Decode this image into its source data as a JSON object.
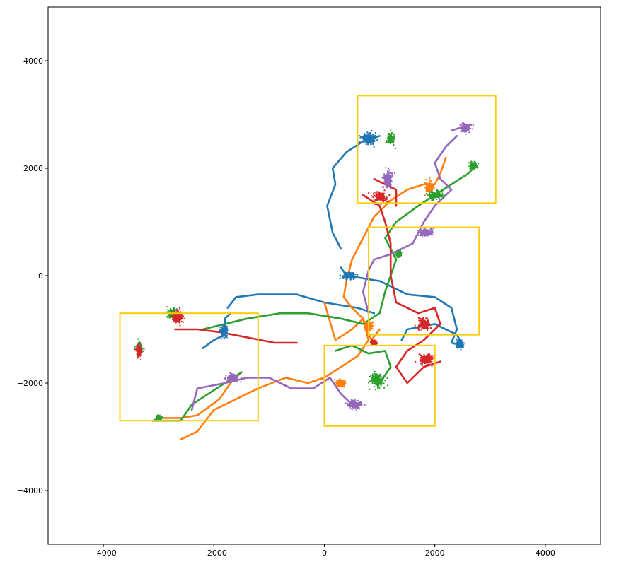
{
  "chart_data": {
    "type": "scatter",
    "title": "",
    "xlabel": "",
    "ylabel": "",
    "xlim": [
      -5000,
      5000
    ],
    "ylim": [
      -5000,
      5000
    ],
    "xticks": [
      -4000,
      -2000,
      0,
      2000,
      4000
    ],
    "yticks": [
      -4000,
      -2000,
      0,
      2000,
      4000
    ],
    "xtick_labels": [
      "−4000",
      "−2000",
      "0",
      "2000",
      "4000"
    ],
    "ytick_labels": [
      "−4000",
      "−2000",
      "0",
      "2000",
      "4000"
    ],
    "grid": false,
    "legend": "none",
    "series": [
      {
        "color": "#1f77b4",
        "paths": [
          [
            [
              300,
              500
            ],
            [
              150,
              800
            ],
            [
              50,
              1300
            ],
            [
              200,
              1700
            ],
            [
              150,
              2000
            ],
            [
              400,
              2300
            ],
            [
              700,
              2500
            ],
            [
              1000,
              2600
            ]
          ],
          [
            [
              300,
              150
            ],
            [
              400,
              0
            ],
            [
              700,
              -50
            ],
            [
              1000,
              -100
            ],
            [
              1500,
              -350
            ],
            [
              2000,
              -400
            ],
            [
              2300,
              -600
            ],
            [
              2400,
              -1000
            ],
            [
              2300,
              -1250
            ],
            [
              2500,
              -1300
            ],
            [
              2400,
              -1100
            ],
            [
              2000,
              -900
            ],
            [
              1500,
              -1000
            ],
            [
              1400,
              -1200
            ]
          ],
          [
            [
              -1750,
              -600
            ],
            [
              -1600,
              -400
            ],
            [
              -1200,
              -350
            ],
            [
              -500,
              -350
            ],
            [
              0,
              -500
            ],
            [
              600,
              -600
            ],
            [
              900,
              -700
            ]
          ],
          [
            [
              -2200,
              -1350
            ],
            [
              -2000,
              -1200
            ],
            [
              -1800,
              -1100
            ],
            [
              -1800,
              -800
            ],
            [
              -1700,
              -700
            ]
          ]
        ],
        "clusters": [
          {
            "center": [
              800,
              2550
            ],
            "spread": [
              250,
              200
            ]
          },
          {
            "center": [
              2450,
              -1280
            ],
            "spread": [
              130,
              130
            ]
          },
          {
            "center": [
              -1820,
              -1050
            ],
            "spread": [
              120,
              220
            ]
          },
          {
            "center": [
              450,
              0
            ],
            "spread": [
              220,
              130
            ]
          }
        ]
      },
      {
        "color": "#ff7f0e",
        "paths": [
          [
            [
              -2600,
              -3050
            ],
            [
              -2300,
              -2900
            ],
            [
              -2000,
              -2500
            ],
            [
              -1600,
              -2300
            ],
            [
              -1200,
              -2100
            ],
            [
              -700,
              -1900
            ],
            [
              -300,
              -2000
            ],
            [
              0,
              -1900
            ],
            [
              300,
              -1700
            ],
            [
              600,
              -1500
            ],
            [
              800,
              -1200
            ],
            [
              700,
              -800
            ],
            [
              500,
              -600
            ],
            [
              350,
              -400
            ],
            [
              400,
              -100
            ],
            [
              500,
              300
            ],
            [
              700,
              700
            ],
            [
              900,
              1100
            ],
            [
              1200,
              1400
            ],
            [
              1500,
              1600
            ],
            [
              1800,
              1700
            ],
            [
              2000,
              1700
            ],
            [
              2100,
              1900
            ],
            [
              2200,
              2200
            ]
          ],
          [
            [
              -3000,
              -2650
            ],
            [
              -2600,
              -2650
            ],
            [
              -2300,
              -2600
            ],
            [
              -1900,
              -2300
            ],
            [
              -1700,
              -2000
            ],
            [
              -1500,
              -1800
            ]
          ],
          [
            [
              0,
              -500
            ],
            [
              200,
              -1200
            ],
            [
              500,
              -1000
            ],
            [
              700,
              -800
            ],
            [
              850,
              -1200
            ],
            [
              1000,
              -1000
            ]
          ]
        ],
        "clusters": [
          {
            "center": [
              800,
              -950
            ],
            "spread": [
              150,
              180
            ]
          },
          {
            "center": [
              1900,
              1650
            ],
            "spread": [
              150,
              200
            ]
          },
          {
            "center": [
              300,
              -2000
            ],
            "spread": [
              150,
              120
            ]
          }
        ]
      },
      {
        "color": "#2ca02c",
        "paths": [
          [
            [
              -3100,
              -2700
            ],
            [
              -2600,
              -2700
            ],
            [
              -2400,
              -2400
            ],
            [
              -2100,
              -2200
            ],
            [
              -1800,
              -2000
            ],
            [
              -1500,
              -1800
            ]
          ],
          [
            [
              -2200,
              -1000
            ],
            [
              -1800,
              -900
            ],
            [
              -1400,
              -800
            ],
            [
              -800,
              -700
            ],
            [
              -300,
              -700
            ],
            [
              300,
              -800
            ],
            [
              700,
              -900
            ],
            [
              1000,
              -700
            ],
            [
              1100,
              -300
            ],
            [
              1200,
              0
            ],
            [
              1300,
              300
            ],
            [
              1100,
              700
            ],
            [
              1300,
              1000
            ],
            [
              1700,
              1300
            ],
            [
              2000,
              1500
            ],
            [
              2300,
              1700
            ],
            [
              2600,
              1900
            ],
            [
              2700,
              2000
            ]
          ],
          [
            [
              200,
              -1400
            ],
            [
              500,
              -1300
            ],
            [
              800,
              -1450
            ],
            [
              1100,
              -1400
            ],
            [
              1200,
              -1700
            ],
            [
              1000,
              -2000
            ]
          ]
        ],
        "clusters": [
          {
            "center": [
              -3350,
              -1350
            ],
            "spread": [
              100,
              200
            ]
          },
          {
            "center": [
              -2750,
              -700
            ],
            "spread": [
              180,
              200
            ]
          },
          {
            "center": [
              -3000,
              -2650
            ],
            "spread": [
              100,
              100
            ]
          },
          {
            "center": [
              2700,
              2050
            ],
            "spread": [
              140,
              120
            ]
          },
          {
            "center": [
              1200,
              2550
            ],
            "spread": [
              120,
              200
            ]
          },
          {
            "center": [
              950,
              -1950
            ],
            "spread": [
              220,
              250
            ]
          },
          {
            "center": [
              1350,
              400
            ],
            "spread": [
              80,
              100
            ]
          },
          {
            "center": [
              2000,
              1500
            ],
            "spread": [
              250,
              150
            ]
          }
        ]
      },
      {
        "color": "#d62728",
        "paths": [
          [
            [
              700,
              1500
            ],
            [
              1000,
              1300
            ],
            [
              1100,
              1000
            ],
            [
              1200,
              600
            ],
            [
              1200,
              0
            ],
            [
              1300,
              -500
            ],
            [
              1700,
              -700
            ],
            [
              2000,
              -600
            ],
            [
              2100,
              -900
            ],
            [
              1800,
              -1200
            ],
            [
              1500,
              -1400
            ],
            [
              1300,
              -1700
            ],
            [
              1500,
              -2000
            ],
            [
              1800,
              -1700
            ],
            [
              2100,
              -1600
            ]
          ],
          [
            [
              -2700,
              -1000
            ],
            [
              -2300,
              -1000
            ],
            [
              -1900,
              -1050
            ],
            [
              -1400,
              -1150
            ],
            [
              -900,
              -1250
            ],
            [
              -500,
              -1250
            ]
          ],
          [
            [
              900,
              1800
            ],
            [
              1300,
              1600
            ],
            [
              1300,
              1300
            ]
          ]
        ],
        "clusters": [
          {
            "center": [
              -3350,
              -1400
            ],
            "spread": [
              100,
              200
            ]
          },
          {
            "center": [
              -2650,
              -750
            ],
            "spread": [
              160,
              250
            ]
          },
          {
            "center": [
              1000,
              1450
            ],
            "spread": [
              250,
              180
            ]
          },
          {
            "center": [
              1800,
              -900
            ],
            "spread": [
              200,
              200
            ]
          },
          {
            "center": [
              1850,
              -1550
            ],
            "spread": [
              250,
              180
            ]
          },
          {
            "center": [
              900,
              -1250
            ],
            "spread": [
              100,
              80
            ]
          }
        ]
      },
      {
        "color": "#9467bd",
        "paths": [
          [
            [
              -2400,
              -2500
            ],
            [
              -2300,
              -2100
            ],
            [
              -1800,
              -2000
            ],
            [
              -1400,
              -1900
            ],
            [
              -1000,
              -1900
            ],
            [
              -600,
              -2100
            ],
            [
              -200,
              -2100
            ],
            [
              100,
              -1900
            ],
            [
              300,
              -2200
            ],
            [
              500,
              -2400
            ]
          ],
          [
            [
              2400,
              2600
            ],
            [
              2200,
              2400
            ],
            [
              2000,
              2100
            ],
            [
              2100,
              1800
            ],
            [
              2300,
              1600
            ],
            [
              2000,
              1300
            ],
            [
              1800,
              1000
            ],
            [
              1700,
              800
            ],
            [
              1600,
              600
            ],
            [
              1200,
              400
            ],
            [
              900,
              300
            ],
            [
              800,
              100
            ],
            [
              700,
              -300
            ],
            [
              800,
              -700
            ]
          ],
          [
            [
              2300,
              2700
            ],
            [
              2450,
              2750
            ],
            [
              2600,
              2800
            ]
          ]
        ],
        "clusters": [
          {
            "center": [
              2550,
              2750
            ],
            "spread": [
              200,
              150
            ]
          },
          {
            "center": [
              1150,
              1800
            ],
            "spread": [
              150,
              300
            ]
          },
          {
            "center": [
              1850,
              800
            ],
            "spread": [
              220,
              120
            ]
          },
          {
            "center": [
              550,
              -2400
            ],
            "spread": [
              250,
              150
            ]
          },
          {
            "center": [
              -1650,
              -1900
            ],
            "spread": [
              200,
              150
            ]
          }
        ]
      }
    ],
    "boxes_color": "#ffcc00",
    "boxes": [
      {
        "x0": 600,
        "x1": 3100,
        "y0": 1350,
        "y1": 3350
      },
      {
        "x0": 800,
        "x1": 2800,
        "y0": -1100,
        "y1": 900
      },
      {
        "x0": 0,
        "x1": 2000,
        "y0": -2800,
        "y1": -1300
      },
      {
        "x0": -3700,
        "x1": -1200,
        "y0": -2700,
        "y1": -700
      }
    ]
  }
}
